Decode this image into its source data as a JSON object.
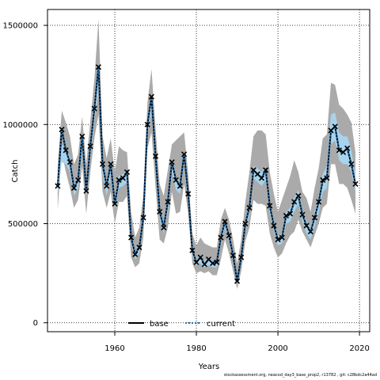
{
  "chart_data": {
    "type": "line",
    "xlabel": "Years",
    "ylabel": "Catch",
    "xlim": [
      1943.5,
      2022.5
    ],
    "ylim": [
      -45000,
      1580000
    ],
    "x_ticks": [
      1960,
      1980,
      2000,
      2020
    ],
    "x_tick_labels": [
      "1960",
      "1980",
      "2000",
      "2020"
    ],
    "y_ticks": [
      0,
      500000,
      1000000,
      1500000
    ],
    "y_tick_labels": [
      "0",
      "500000",
      "1000000",
      "1500000"
    ],
    "grid": true,
    "legend_position": "bottom-center",
    "colors": {
      "base": "#000000",
      "current": "#1f6fb4",
      "ci_current": "#a7d3ec",
      "ci_base": "#aaaaaa"
    },
    "series": [
      {
        "name": "base",
        "style": "solid",
        "color": "#000000"
      },
      {
        "name": "current",
        "style": "dotted",
        "color": "#1f6fb4"
      }
    ],
    "x": [
      1946,
      1947,
      1948,
      1949,
      1950,
      1951,
      1952,
      1953,
      1954,
      1955,
      1956,
      1957,
      1958,
      1959,
      1960,
      1961,
      1962,
      1963,
      1964,
      1965,
      1966,
      1967,
      1968,
      1969,
      1970,
      1971,
      1972,
      1973,
      1974,
      1975,
      1976,
      1977,
      1978,
      1979,
      1980,
      1981,
      1982,
      1983,
      1984,
      1985,
      1986,
      1987,
      1988,
      1989,
      1990,
      1991,
      1992,
      1993,
      1994,
      1995,
      1996,
      1997,
      1998,
      1999,
      2000,
      2001,
      2002,
      2003,
      2004,
      2005,
      2006,
      2007,
      2008,
      2009,
      2010,
      2011,
      2012,
      2013,
      2014,
      2015,
      2016,
      2017,
      2018,
      2019
    ],
    "y": [
      690000,
      975000,
      870000,
      810000,
      680000,
      720000,
      940000,
      665000,
      890000,
      1080000,
      1290000,
      800000,
      690000,
      800000,
      600000,
      720000,
      730000,
      760000,
      430000,
      345000,
      380000,
      530000,
      1000000,
      1140000,
      840000,
      560000,
      480000,
      610000,
      810000,
      720000,
      690000,
      850000,
      650000,
      365000,
      305000,
      330000,
      295000,
      320000,
      300000,
      305000,
      430000,
      510000,
      440000,
      340000,
      210000,
      330000,
      500000,
      580000,
      770000,
      750000,
      730000,
      770000,
      590000,
      490000,
      420000,
      430000,
      540000,
      550000,
      610000,
      640000,
      545000,
      490000,
      460000,
      530000,
      610000,
      720000,
      730000,
      970000,
      990000,
      870000,
      860000,
      880000,
      800000,
      700000
    ],
    "ci_upper": [
      790000,
      1070000,
      1010000,
      940000,
      800000,
      850000,
      1040000,
      800000,
      1020000,
      1230000,
      1530000,
      940000,
      830000,
      930000,
      760000,
      890000,
      870000,
      860000,
      560000,
      430000,
      480000,
      640000,
      1110000,
      1280000,
      980000,
      700000,
      640000,
      770000,
      900000,
      920000,
      940000,
      960000,
      750000,
      450000,
      390000,
      430000,
      400000,
      390000,
      380000,
      380000,
      520000,
      580000,
      520000,
      420000,
      300000,
      420000,
      610000,
      760000,
      940000,
      970000,
      970000,
      950000,
      760000,
      650000,
      560000,
      620000,
      680000,
      740000,
      820000,
      760000,
      660000,
      630000,
      560000,
      680000,
      780000,
      930000,
      950000,
      1210000,
      1200000,
      1100000,
      1080000,
      1050000,
      1010000,
      860000
    ],
    "ci_lower": [
      570000,
      860000,
      760000,
      680000,
      580000,
      620000,
      790000,
      550000,
      760000,
      930000,
      1050000,
      660000,
      580000,
      660000,
      500000,
      610000,
      610000,
      640000,
      330000,
      280000,
      300000,
      430000,
      880000,
      960000,
      680000,
      420000,
      400000,
      480000,
      660000,
      550000,
      560000,
      700000,
      550000,
      300000,
      250000,
      260000,
      250000,
      260000,
      240000,
      240000,
      320000,
      420000,
      350000,
      260000,
      170000,
      260000,
      410000,
      480000,
      620000,
      600000,
      600000,
      590000,
      450000,
      380000,
      330000,
      350000,
      400000,
      440000,
      460000,
      520000,
      460000,
      420000,
      380000,
      440000,
      500000,
      580000,
      600000,
      800000,
      800000,
      700000,
      700000,
      680000,
      620000,
      550000
    ],
    "ci_current_upper": [
      710000,
      900000,
      870000,
      840000,
      700000,
      740000,
      930000,
      690000,
      900000,
      1100000,
      1270000,
      820000,
      700000,
      810000,
      630000,
      740000,
      750000,
      770000,
      450000,
      360000,
      400000,
      550000,
      1010000,
      1140000,
      850000,
      580000,
      500000,
      620000,
      820000,
      740000,
      710000,
      860000,
      660000,
      380000,
      320000,
      340000,
      310000,
      330000,
      310000,
      320000,
      440000,
      520000,
      450000,
      350000,
      230000,
      350000,
      510000,
      600000,
      790000,
      780000,
      760000,
      790000,
      610000,
      510000,
      440000,
      450000,
      560000,
      580000,
      630000,
      670000,
      570000,
      510000,
      480000,
      560000,
      640000,
      750000,
      790000,
      1050000,
      1060000,
      960000,
      940000,
      940000,
      870000,
      740000
    ],
    "ci_current_lower": [
      650000,
      810000,
      800000,
      760000,
      640000,
      680000,
      860000,
      630000,
      830000,
      1020000,
      1170000,
      750000,
      640000,
      740000,
      570000,
      680000,
      690000,
      710000,
      400000,
      320000,
      350000,
      500000,
      950000,
      1070000,
      780000,
      520000,
      450000,
      560000,
      760000,
      670000,
      650000,
      800000,
      610000,
      340000,
      290000,
      300000,
      280000,
      290000,
      280000,
      280000,
      400000,
      480000,
      410000,
      310000,
      190000,
      300000,
      460000,
      540000,
      730000,
      710000,
      690000,
      720000,
      550000,
      460000,
      390000,
      400000,
      500000,
      510000,
      560000,
      600000,
      510000,
      450000,
      420000,
      490000,
      560000,
      660000,
      680000,
      900000,
      920000,
      820000,
      800000,
      800000,
      760000,
      660000
    ],
    "legend": {
      "items": [
        {
          "label": "base"
        },
        {
          "label": "current"
        }
      ]
    }
  },
  "footnote": "stockassessment.org, neacod_day3_base_prop2, r13782 , git: c28bdc2a44ad"
}
